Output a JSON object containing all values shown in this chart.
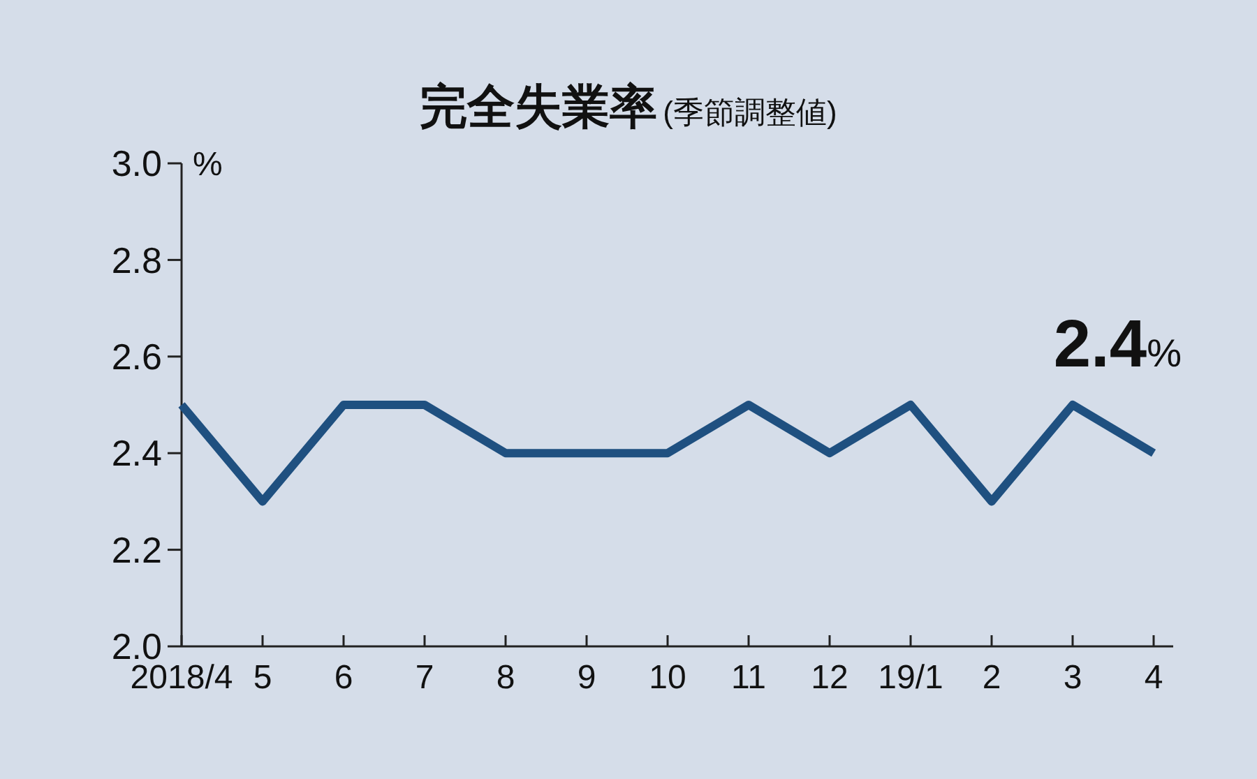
{
  "chart_data": {
    "type": "line",
    "title": "完全失業率",
    "subtitle": "(季節調整値)",
    "ylabel": "%",
    "categories": [
      "2018/4",
      "5",
      "6",
      "7",
      "8",
      "9",
      "10",
      "11",
      "12",
      "19/1",
      "2",
      "3",
      "4"
    ],
    "series": [
      {
        "color": "#1f5080",
        "values": [
          2.5,
          2.3,
          2.5,
          2.5,
          2.4,
          2.4,
          2.4,
          2.5,
          2.4,
          2.5,
          2.3,
          2.5,
          2.4
        ]
      }
    ],
    "ylim": [
      2.0,
      3.0
    ],
    "yticks": [
      {
        "value": 2,
        "label": "2.0"
      },
      {
        "value": 2.2,
        "label": "2.2"
      },
      {
        "value": 2.4,
        "label": "2.4"
      },
      {
        "value": 2.6,
        "label": "2.6"
      },
      {
        "value": 2.8,
        "label": "2.8"
      },
      {
        "value": 3,
        "label": "3.0"
      }
    ],
    "annotations": [
      {
        "text": "2.4%",
        "x": "4",
        "y": 2.4
      }
    ],
    "marker": "none",
    "line_style": "solid"
  }
}
